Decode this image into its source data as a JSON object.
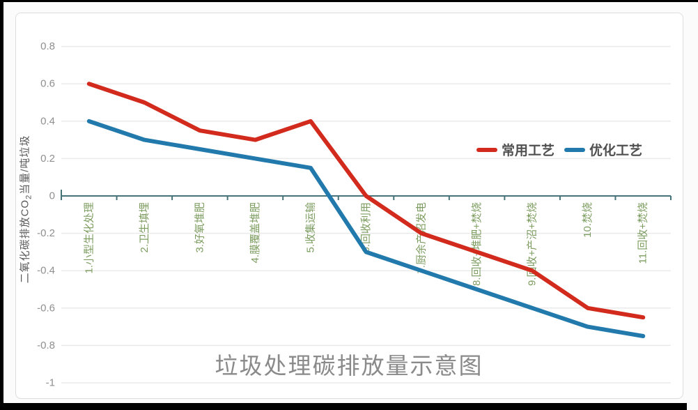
{
  "chart_data": {
    "type": "line",
    "title": "垃圾处理碳排放量示意图",
    "ylabel": "二氧化碳排放CO2当量/吨垃圾",
    "ylabel_parts": {
      "prefix": "二氧化碳排放CO",
      "sub": "2",
      "suffix": "当量/吨垃圾"
    },
    "categories": [
      "1.小型生化处理",
      "2.卫生填埋",
      "3.好氧堆肥",
      "4.膜覆盖堆肥",
      "5.收集运输",
      "6.回收利用",
      "7.厨余产沼发电",
      "8.回收+堆肥+焚烧",
      "9.回收+产沼+焚烧",
      "10.焚烧",
      "11.回收+焚烧"
    ],
    "series": [
      {
        "name": "常用工艺",
        "color": "#d22a1d",
        "values": [
          0.6,
          0.5,
          0.35,
          0.3,
          0.4,
          0.0,
          -0.2,
          -0.3,
          -0.4,
          -0.6,
          -0.65
        ]
      },
      {
        "name": "优化工艺",
        "color": "#2279ab",
        "values": [
          0.4,
          0.3,
          0.25,
          0.2,
          0.15,
          -0.3,
          -0.4,
          -0.5,
          -0.6,
          -0.7,
          -0.75
        ]
      }
    ],
    "ylim": [
      -1,
      0.8
    ],
    "yticks": [
      {
        "v": 0.8,
        "label": "0.8"
      },
      {
        "v": 0.6,
        "label": "0.6"
      },
      {
        "v": 0.4,
        "label": "0.4"
      },
      {
        "v": 0.2,
        "label": "0.2"
      },
      {
        "v": 0,
        "label": "0"
      },
      {
        "v": -0.2,
        "label": "-0.2"
      },
      {
        "v": -0.4,
        "label": "-0.4"
      },
      {
        "v": -0.6,
        "label": "-0.6"
      },
      {
        "v": -0.8,
        "label": "-0.8"
      },
      {
        "v": -1,
        "label": "-1"
      }
    ],
    "grid": true,
    "legend_position": "upper-right-inside",
    "colors": {
      "grid_line": "#eaeaea",
      "zero_axis": "#46737a",
      "tick_text": "#8f8f8f",
      "category_text": "#7d9d60"
    }
  }
}
